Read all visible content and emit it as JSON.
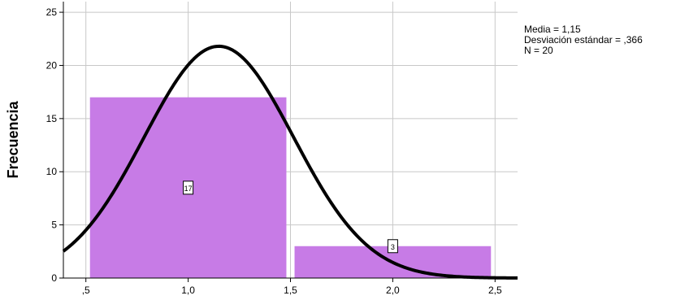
{
  "chart_data": {
    "type": "bar",
    "ylabel": "Frecuencia",
    "xlabel": "",
    "x_ticks": [
      ",5",
      "1,0",
      "1,5",
      "2,0",
      "2,5"
    ],
    "x_tick_values": [
      0.5,
      1.0,
      1.5,
      2.0,
      2.5
    ],
    "y_ticks": [
      "0",
      "5",
      "10",
      "15",
      "20",
      "25"
    ],
    "y_tick_values": [
      0,
      5,
      10,
      15,
      20,
      25
    ],
    "xlim": [
      0.39,
      2.61
    ],
    "ylim": [
      0,
      26
    ],
    "bins": [
      {
        "from": 0.52,
        "to": 1.48,
        "value": 17,
        "label": "17"
      },
      {
        "from": 1.52,
        "to": 2.48,
        "value": 3,
        "label": "3"
      }
    ],
    "normal_curve": {
      "mean": 1.15,
      "sd": 0.366,
      "n": 20,
      "bin_width": 1.0
    },
    "bar_color": "#c77be6",
    "curve_color": "#000000",
    "grid": true
  },
  "stats": {
    "mean": "Media = 1,15",
    "sd": "Desviación estándar = ,366",
    "n": "N = 20"
  }
}
